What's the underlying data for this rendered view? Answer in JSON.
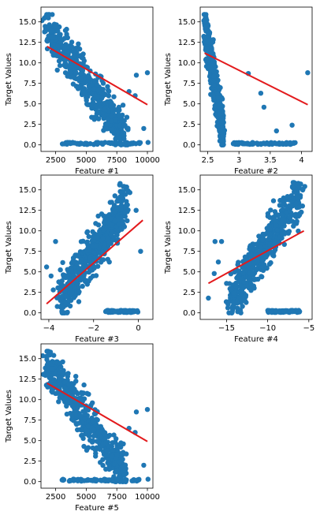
{
  "style": {
    "point_color": "#1f77b4",
    "line_color": "#e31a1c"
  },
  "chart_data": [
    {
      "type": "scatter",
      "xlabel": "Feature #1",
      "ylabel": "Target Values",
      "xlim": [
        1300,
        10450
      ],
      "ylim": [
        -0.8,
        16.8
      ],
      "xticks": [
        2500,
        5000,
        7500,
        10000
      ],
      "yticks": [
        0.0,
        2.5,
        5.0,
        7.5,
        10.0,
        12.5,
        15.0
      ],
      "trendline": {
        "x": [
          1800,
          10000
        ],
        "y": [
          12.0,
          4.9
        ]
      },
      "cloud": {
        "x_lo": 1800,
        "x_hi": 8200,
        "y_at_lo": 14.0,
        "y_at_hi": 1.2,
        "spread": 2.6
      },
      "base_row": {
        "x": [
          3000,
          9500
        ],
        "y": 0.05
      },
      "points": [
        {
          "x": 10000,
          "y": 8.8
        },
        {
          "x": 9100,
          "y": 8.5
        },
        {
          "x": 9000,
          "y": 6.0
        },
        {
          "x": 9700,
          "y": 2.0
        },
        {
          "x": 10050,
          "y": 0.3
        },
        {
          "x": 8500,
          "y": 6.5
        }
      ]
    },
    {
      "type": "scatter",
      "xlabel": "Feature #2",
      "ylabel": "Target Values",
      "xlim": [
        2.38,
        4.17
      ],
      "ylim": [
        -0.8,
        16.8
      ],
      "xticks": [
        2.5,
        3.0,
        3.5,
        4.0
      ],
      "yticks": [
        0.0,
        2.5,
        5.0,
        7.5,
        10.0,
        12.5,
        15.0
      ],
      "trendline": {
        "x": [
          2.45,
          4.1
        ],
        "y": [
          11.2,
          4.9
        ]
      },
      "cloud": {
        "x_lo": 2.45,
        "x_hi": 2.75,
        "y_at_lo": 14.5,
        "y_at_hi": 1.5,
        "spread": 2.8
      },
      "base_row": {
        "x": [
          2.9,
          3.9
        ],
        "y": 0.05
      },
      "points": [
        {
          "x": 4.1,
          "y": 8.8
        },
        {
          "x": 3.15,
          "y": 8.7
        },
        {
          "x": 3.35,
          "y": 6.3
        },
        {
          "x": 3.4,
          "y": 4.6
        },
        {
          "x": 3.6,
          "y": 1.7
        },
        {
          "x": 3.85,
          "y": 2.4
        }
      ]
    },
    {
      "type": "scatter",
      "xlabel": "Feature #3",
      "ylabel": "Target Values",
      "xlim": [
        -4.35,
        0.65
      ],
      "ylim": [
        -0.8,
        16.8
      ],
      "xticks": [
        -4,
        -2,
        0
      ],
      "yticks": [
        0.0,
        2.5,
        5.0,
        7.5,
        10.0,
        12.5,
        15.0
      ],
      "trendline": {
        "x": [
          -4.1,
          0.2
        ],
        "y": [
          1.1,
          11.3
        ]
      },
      "cloud": {
        "x_lo": -3.5,
        "x_hi": -0.5,
        "y_at_lo": 1.8,
        "y_at_hi": 13.5,
        "spread": 2.8
      },
      "base_row": {
        "x": [
          -1.5,
          0.0
        ],
        "y": 0.05
      },
      "points": [
        {
          "x": -4.1,
          "y": 5.6
        },
        {
          "x": -3.7,
          "y": 8.7
        },
        {
          "x": -3.9,
          "y": 4.5
        },
        {
          "x": -3.8,
          "y": 2.8
        },
        {
          "x": 0.1,
          "y": 7.5
        },
        {
          "x": -0.1,
          "y": 12.5
        }
      ]
    },
    {
      "type": "scatter",
      "xlabel": "Feature #4",
      "ylabel": "Target Values",
      "xlim": [
        -18.2,
        -4.6
      ],
      "ylim": [
        -0.8,
        16.8
      ],
      "xticks": [
        -15,
        -10,
        -5
      ],
      "yticks": [
        0.0,
        2.5,
        5.0,
        7.5,
        10.0,
        12.5,
        15.0
      ],
      "trendline": {
        "x": [
          -17.2,
          -5.6
        ],
        "y": [
          3.6,
          10.0
        ]
      },
      "cloud": {
        "x_lo": -14.5,
        "x_hi": -6.0,
        "y_at_lo": 1.5,
        "y_at_hi": 14.5,
        "spread": 2.7
      },
      "base_row": {
        "x": [
          -10.0,
          -6.0
        ],
        "y": 0.05
      },
      "points": [
        {
          "x": -17.2,
          "y": 1.8
        },
        {
          "x": -16.5,
          "y": 4.8
        },
        {
          "x": -16.0,
          "y": 6.2
        },
        {
          "x": -16.4,
          "y": 8.7
        },
        {
          "x": -15.6,
          "y": 8.7
        },
        {
          "x": -15.0,
          "y": 3.6
        }
      ]
    },
    {
      "type": "scatter",
      "xlabel": "Feature #5",
      "ylabel": "Target Values",
      "xlim": [
        1300,
        10450
      ],
      "ylim": [
        -0.8,
        16.8
      ],
      "xticks": [
        2500,
        5000,
        7500,
        10000
      ],
      "yticks": [
        0.0,
        2.5,
        5.0,
        7.5,
        10.0,
        12.5,
        15.0
      ],
      "trendline": {
        "x": [
          1800,
          10000
        ],
        "y": [
          12.0,
          4.9
        ]
      },
      "cloud": {
        "x_lo": 1800,
        "x_hi": 8200,
        "y_at_lo": 14.0,
        "y_at_hi": 1.2,
        "spread": 2.6
      },
      "base_row": {
        "x": [
          3000,
          9500
        ],
        "y": 0.05
      },
      "points": [
        {
          "x": 10000,
          "y": 8.8
        },
        {
          "x": 9100,
          "y": 8.5
        },
        {
          "x": 9000,
          "y": 6.0
        },
        {
          "x": 9700,
          "y": 2.0
        },
        {
          "x": 10050,
          "y": 0.3
        },
        {
          "x": 8500,
          "y": 6.5
        }
      ]
    }
  ]
}
